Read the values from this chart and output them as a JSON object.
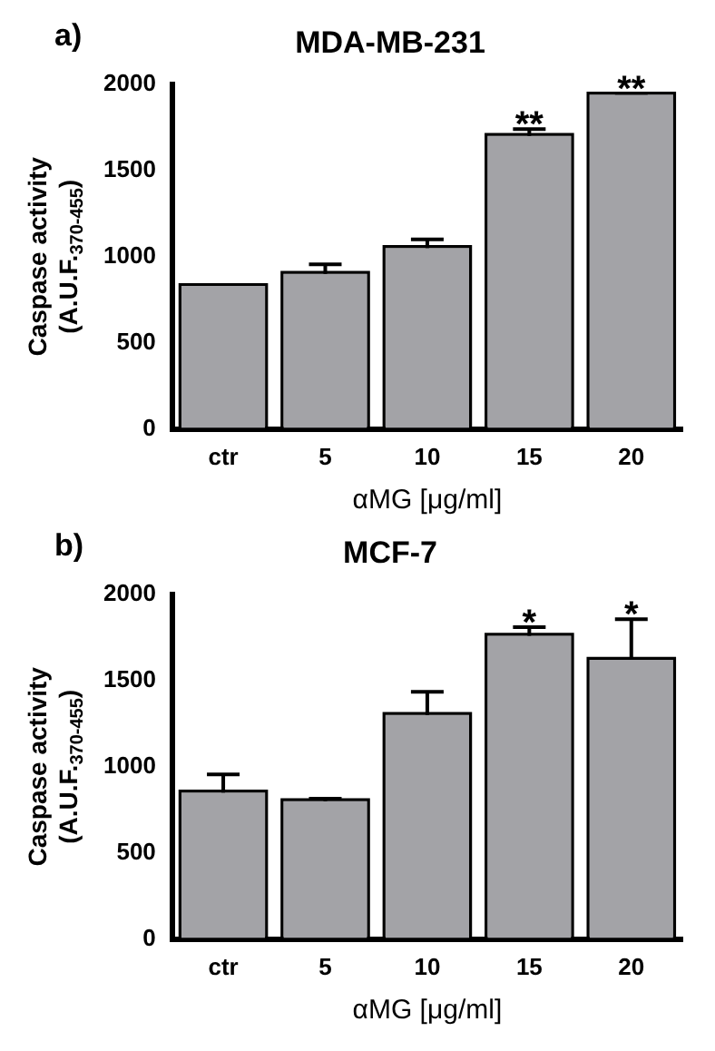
{
  "chart_data": [
    {
      "type": "bar",
      "title": "MDA-MB-231",
      "xlabel": "αMG [μg/ml]",
      "ylabel": "Caspase activity\n(A.U.F.$_{370-455}$)",
      "categories": [
        "ctr",
        "5",
        "10",
        "15",
        "20"
      ],
      "values": [
        830,
        900,
        1050,
        1700,
        1940
      ],
      "errors": [
        5,
        55,
        50,
        40,
        5
      ],
      "color": "#a3a3a7",
      "ylim": [
        0,
        2000
      ],
      "yticks": [
        0,
        500,
        1000,
        1500,
        2000
      ],
      "grid": false,
      "annotations": [
        "a)",
        {
          "text": "**",
          "x": "15",
          "y": 1740
        },
        {
          "text": "**",
          "x": "20",
          "y": 1945
        }
      ]
    },
    {
      "type": "bar",
      "title": "MCF-7",
      "xlabel": "αMG [μg/ml]",
      "ylabel": "Caspase activity\n(A.U.F.$_{370-455}$)",
      "categories": [
        "ctr",
        "5",
        "10",
        "15",
        "20"
      ],
      "values": [
        850,
        800,
        1300,
        1760,
        1620
      ],
      "errors": [
        105,
        15,
        135,
        50,
        235
      ],
      "color": "#a3a3a7",
      "ylim": [
        0,
        2000
      ],
      "yticks": [
        0,
        500,
        1000,
        1500,
        2000
      ],
      "grid": false,
      "annotations": [
        "b)",
        {
          "text": "*",
          "x": "15",
          "y": 1810
        },
        {
          "text": "*",
          "x": "20",
          "y": 1855
        }
      ]
    }
  ]
}
